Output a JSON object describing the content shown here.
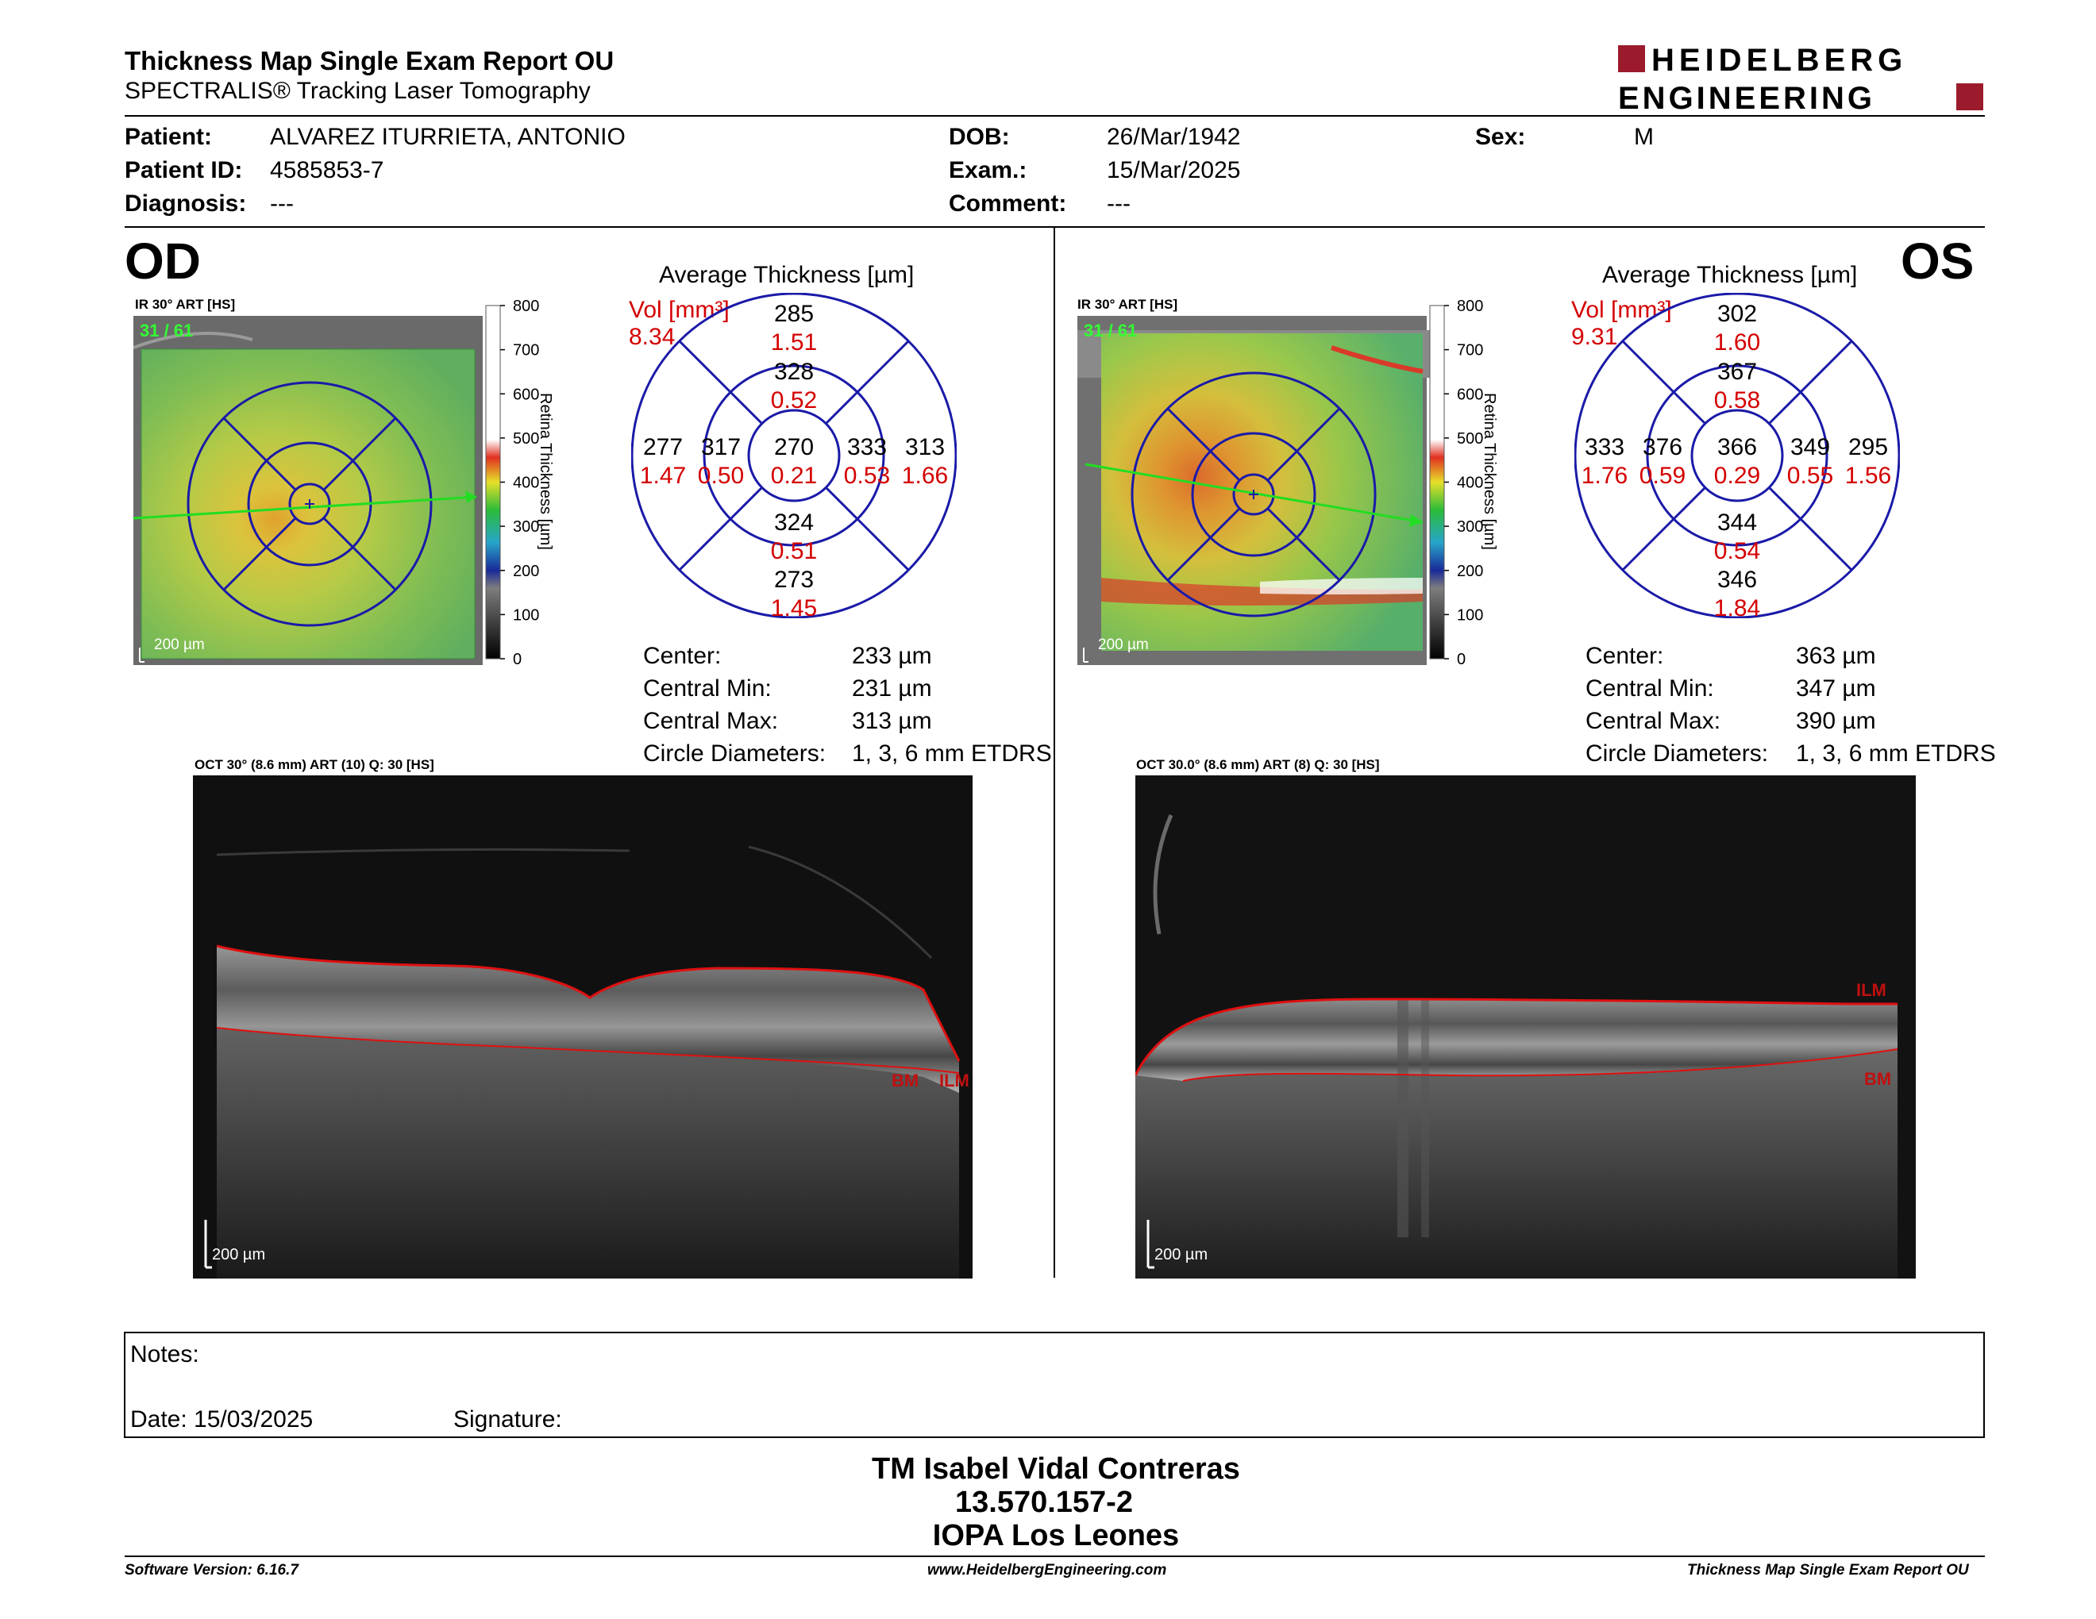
{
  "header": {
    "title": "Thickness Map Single Exam Report OU",
    "subtitle": "SPECTRALIS® Tracking Laser Tomography",
    "logo_line1": "HEIDELBERG",
    "logo_line2": "ENGINEERING",
    "logo_color": "#9b1b2c"
  },
  "patient": {
    "patient_label": "Patient:",
    "patient_value": "ALVAREZ ITURRIETA, ANTONIO",
    "id_label": "Patient ID:",
    "id_value": "4585853-7",
    "diagnosis_label": "Diagnosis:",
    "diagnosis_value": "---",
    "dob_label": "DOB:",
    "dob_value": "26/Mar/1942",
    "exam_label": "Exam.:",
    "exam_value": "15/Mar/2025",
    "comment_label": "Comment:",
    "comment_value": "---",
    "sex_label": "Sex:",
    "sex_value": "M"
  },
  "od": {
    "eye": "OD",
    "ir_caption": "IR 30° ART [HS]",
    "ir_counter": "31 / 61",
    "ir_scale": "200 µm",
    "colorbar_ticks": [
      "800",
      "700",
      "600",
      "500",
      "400",
      "300",
      "200",
      "100",
      "0"
    ],
    "colorbar_title": "Retina Thickness [µm]",
    "avg_title": "Average Thickness [µm]",
    "vol_label": "Vol [mm³]",
    "vol_value": "8.34",
    "sectors": {
      "center": {
        "t": "270",
        "v": "0.21"
      },
      "inner_sup": {
        "t": "328",
        "v": "0.52"
      },
      "inner_inf": {
        "t": "324",
        "v": "0.51"
      },
      "inner_left": {
        "t": "317",
        "v": "0.50"
      },
      "inner_right": {
        "t": "333",
        "v": "0.53"
      },
      "outer_sup": {
        "t": "285",
        "v": "1.51"
      },
      "outer_inf": {
        "t": "273",
        "v": "1.45"
      },
      "outer_left": {
        "t": "277",
        "v": "1.47"
      },
      "outer_right": {
        "t": "313",
        "v": "1.66"
      }
    },
    "stats": [
      {
        "label": "Center:",
        "value": "233 µm"
      },
      {
        "label": "Central Min:",
        "value": "231 µm"
      },
      {
        "label": "Central Max:",
        "value": "313 µm"
      },
      {
        "label": "Circle Diameters:",
        "value": "1, 3, 6 mm ETDRS"
      }
    ],
    "oct_caption": "OCT 30° (8.6 mm) ART (10) Q: 30 [HS]",
    "oct_scale": "200 µm",
    "oct_labels": {
      "bm": "BM",
      "ilm": "ILM"
    }
  },
  "os": {
    "eye": "OS",
    "ir_caption": "IR 30° ART [HS]",
    "ir_counter": "31 / 61",
    "ir_scale": "200 µm",
    "colorbar_ticks": [
      "800",
      "700",
      "600",
      "500",
      "400",
      "300",
      "200",
      "100",
      "0"
    ],
    "colorbar_title": "Retina Thickness [µm]",
    "avg_title": "Average Thickness [µm]",
    "vol_label": "Vol [mm³]",
    "vol_value": "9.31",
    "sectors": {
      "center": {
        "t": "366",
        "v": "0.29"
      },
      "inner_sup": {
        "t": "367",
        "v": "0.58"
      },
      "inner_inf": {
        "t": "344",
        "v": "0.54"
      },
      "inner_left": {
        "t": "376",
        "v": "0.59"
      },
      "inner_right": {
        "t": "349",
        "v": "0.55"
      },
      "outer_sup": {
        "t": "302",
        "v": "1.60"
      },
      "outer_inf": {
        "t": "346",
        "v": "1.84"
      },
      "outer_left": {
        "t": "333",
        "v": "1.76"
      },
      "outer_right": {
        "t": "295",
        "v": "1.56"
      }
    },
    "stats": [
      {
        "label": "Center:",
        "value": "363 µm"
      },
      {
        "label": "Central Min:",
        "value": "347 µm"
      },
      {
        "label": "Central Max:",
        "value": "390 µm"
      },
      {
        "label": "Circle Diameters:",
        "value": "1, 3, 6 mm ETDRS"
      }
    ],
    "oct_caption": "OCT 30.0° (8.6 mm) ART (8) Q: 30 [HS]",
    "oct_scale": "200 µm",
    "oct_labels": {
      "bm": "BM",
      "ilm": "ILM"
    }
  },
  "notes": {
    "notes_label": "Notes:",
    "date_label": "Date: 15/03/2025",
    "signature_label": "Signature:"
  },
  "stamp": {
    "line1": "TM Isabel Vidal Contreras",
    "line2": "13.570.157-2",
    "line3": "IOPA Los Leones"
  },
  "footer": {
    "left": "Software Version: 6.16.7",
    "center": "www.HeidelbergEngineering.com",
    "right": "Thickness Map Single Exam Report OU"
  },
  "colors": {
    "grid_blue": "#1a1aa8",
    "volume_red": "#d40000",
    "scan_line_green": "#22dd22",
    "counter_green": "#33ff33",
    "segmentation_red": "#e01010"
  }
}
